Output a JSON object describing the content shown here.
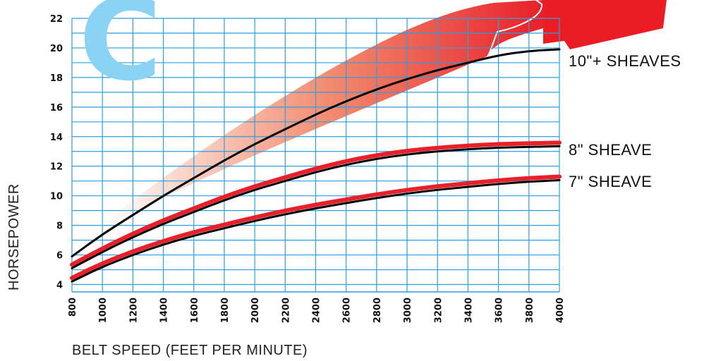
{
  "chart_data": {
    "type": "line",
    "badge": "C",
    "xlabel": "BELT SPEED (FEET PER MINUTE)",
    "ylabel": "HORSEPOWER",
    "xlim": [
      800,
      4000
    ],
    "ylim": [
      3.5,
      22
    ],
    "x_ticks": [
      800,
      1000,
      1200,
      1400,
      1600,
      1800,
      2000,
      2200,
      2400,
      2600,
      2800,
      3000,
      3200,
      3400,
      3600,
      3800,
      4000
    ],
    "y_ticks": [
      4,
      6,
      8,
      10,
      12,
      14,
      16,
      18,
      20,
      22
    ],
    "grid": true,
    "series": [
      {
        "name": "10\"+ SHEAVES",
        "color": "#000000",
        "x": [
          800,
          1000,
          1200,
          1400,
          1600,
          1800,
          2000,
          2200,
          2400,
          2600,
          2800,
          3000,
          3200,
          3400,
          3600,
          3800,
          4000
        ],
        "y": [
          5.9,
          7.4,
          8.7,
          10.0,
          11.2,
          12.4,
          13.5,
          14.5,
          15.5,
          16.4,
          17.2,
          17.9,
          18.5,
          19.0,
          19.5,
          19.8,
          19.9
        ]
      },
      {
        "name": "8\" SHEAVE",
        "color": "#e8202a",
        "x": [
          800,
          1000,
          1200,
          1400,
          1600,
          1800,
          2000,
          2200,
          2400,
          2600,
          2800,
          3000,
          3200,
          3400,
          3600,
          3800,
          4000
        ],
        "y": [
          5.2,
          6.3,
          7.3,
          8.2,
          9.0,
          9.8,
          10.5,
          11.1,
          11.7,
          12.2,
          12.6,
          12.9,
          13.1,
          13.25,
          13.35,
          13.4,
          13.45
        ]
      },
      {
        "name": "7\" SHEAVE",
        "color": "#e8202a",
        "x": [
          800,
          1000,
          1200,
          1400,
          1600,
          1800,
          2000,
          2200,
          2400,
          2600,
          2800,
          3000,
          3200,
          3400,
          3600,
          3800,
          4000
        ],
        "y": [
          4.3,
          5.3,
          6.1,
          6.8,
          7.4,
          7.9,
          8.4,
          8.85,
          9.25,
          9.6,
          9.95,
          10.25,
          10.5,
          10.7,
          10.9,
          11.05,
          11.15
        ]
      }
    ]
  },
  "colors": {
    "grid": "#2b9fe0",
    "badge": "#8ad3f5",
    "arrow_start": "#ffffff",
    "arrow_end": "#e8202a",
    "red_line": "#e8202a",
    "black_line": "#000000"
  }
}
